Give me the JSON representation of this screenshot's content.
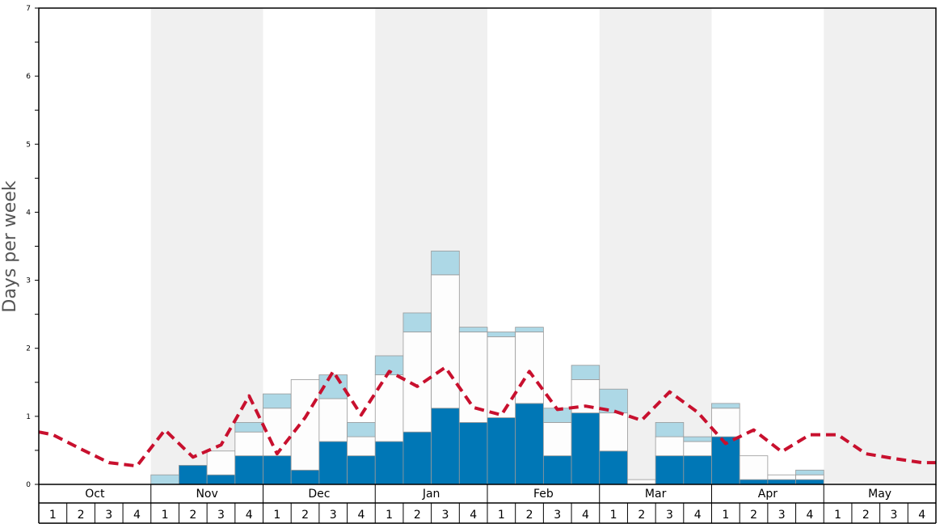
{
  "chart_data": {
    "type": "bar",
    "ylabel": "Days per week",
    "ylim": [
      0,
      7
    ],
    "yticks": [
      "0",
      "1",
      "2",
      "3",
      "4",
      "5",
      "6",
      "7"
    ],
    "months": [
      "Oct",
      "Nov",
      "Dec",
      "Jan",
      "Feb",
      "Mar",
      "Apr",
      "May"
    ],
    "weeks": [
      "1",
      "2",
      "3",
      "4"
    ],
    "colors": {
      "bottom": "#0077b6",
      "middle": "#fdfdfd",
      "top": "#add8e6",
      "line": "#c8102e",
      "shade": "#f0f0f0"
    },
    "series": [
      {
        "values": [
          0,
          0,
          0,
          0,
          0,
          0.28,
          0.14,
          0.42,
          0.42,
          0.21,
          0.63,
          0.42,
          0.63,
          0.77,
          1.12,
          0.91,
          0.98,
          1.19,
          0.42,
          1.05,
          0.49,
          0,
          0.42,
          0.42,
          0.7,
          0.07,
          0.07,
          0.07,
          0,
          0,
          0,
          0
        ]
      },
      {
        "values": [
          0,
          0,
          0,
          0,
          0,
          0,
          0.35,
          0.35,
          0.7,
          1.33,
          0.63,
          0.28,
          0.98,
          1.47,
          1.96,
          1.33,
          1.19,
          1.05,
          0.49,
          0.49,
          0.56,
          0.07,
          0.28,
          0.21,
          0.42,
          0.35,
          0.07,
          0.07,
          0,
          0,
          0,
          0
        ]
      },
      {
        "values": [
          0,
          0,
          0,
          0,
          0.14,
          0,
          0,
          0.14,
          0.21,
          0,
          0.35,
          0.21,
          0.28,
          0.28,
          0.35,
          0.07,
          0.07,
          0.07,
          0.21,
          0.21,
          0.35,
          0,
          0.21,
          0.07,
          0.07,
          0,
          0,
          0.07,
          0,
          0,
          0,
          0
        ]
      },
      {
        "values": [
          0.73,
          0.52,
          0.32,
          0.27,
          0.8,
          0.4,
          0.58,
          1.3,
          0.45,
          0.98,
          1.66,
          1.02,
          1.66,
          1.44,
          1.72,
          1.13,
          1.02,
          1.66,
          1.1,
          1.15,
          1.08,
          0.94,
          1.36,
          1.06,
          0.6,
          0.8,
          0.48,
          0.73,
          0.73,
          0.45,
          0.38,
          0.32
        ]
      }
    ]
  }
}
